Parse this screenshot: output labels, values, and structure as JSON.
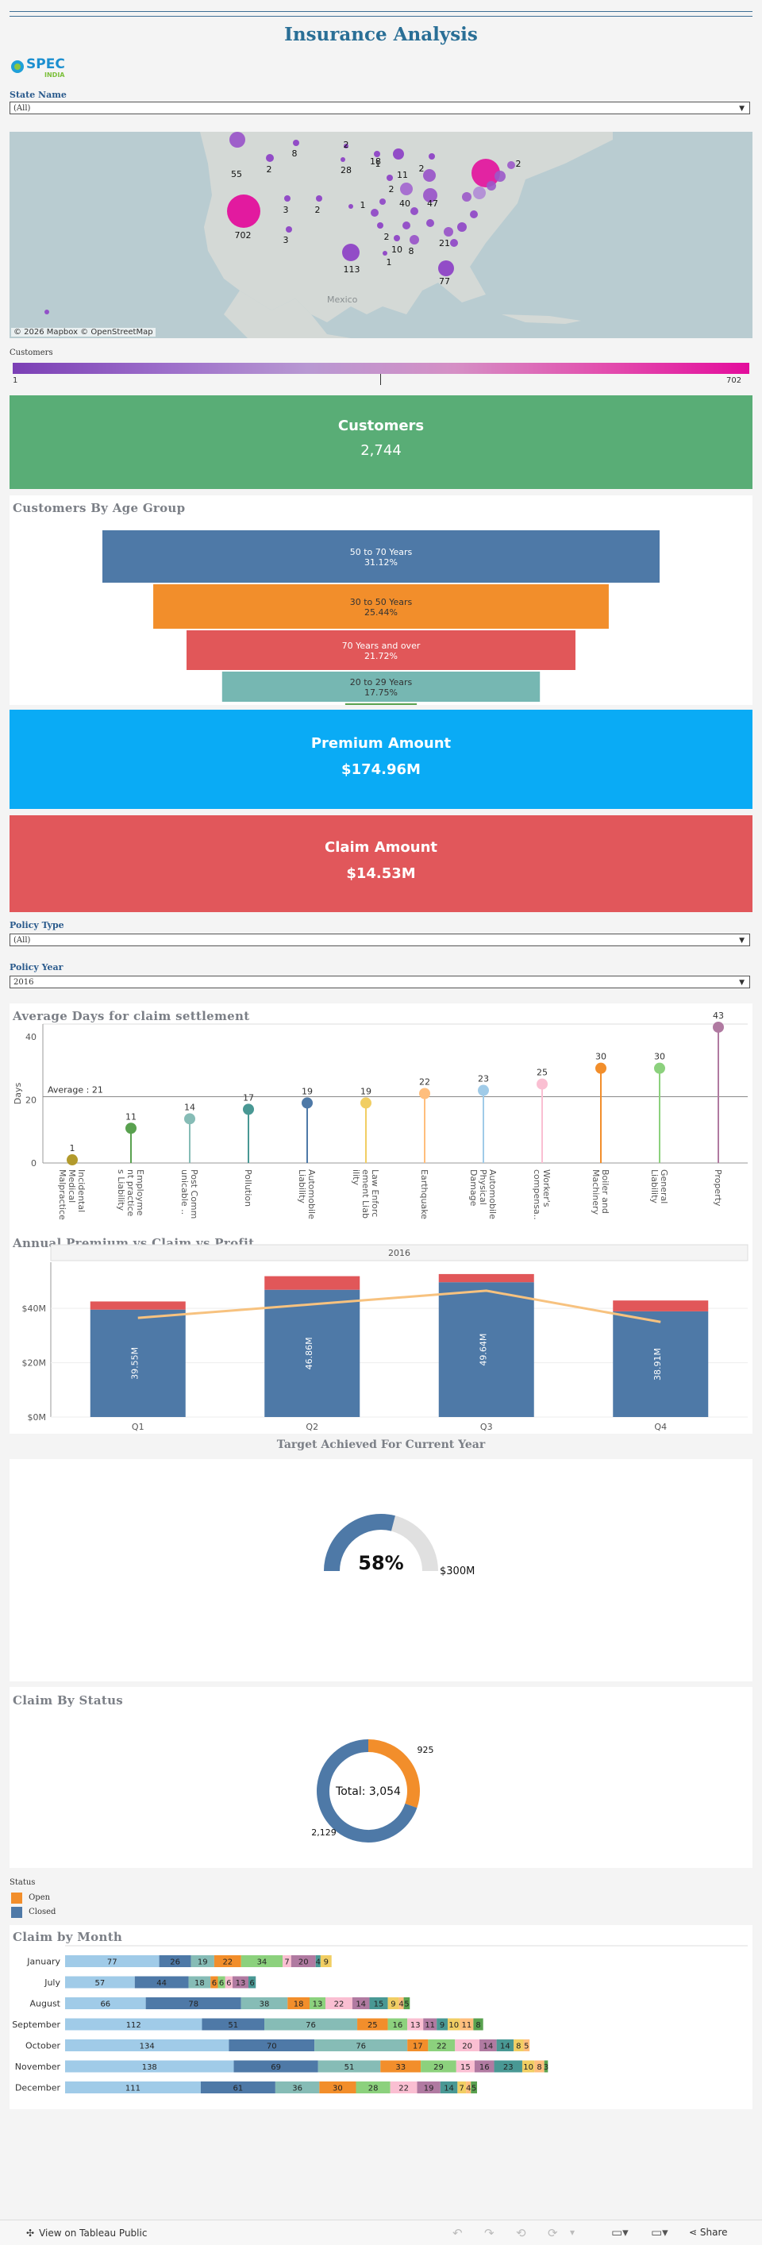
{
  "title": "Insurance Analysis",
  "logo": {
    "text": "SPEC",
    "subtext": "INDIA"
  },
  "filters": {
    "state_label": "State Name",
    "state_value": "(All)",
    "policy_type_label": "Policy Type",
    "policy_type_value": "(All)",
    "policy_year_label": "Policy Year",
    "policy_year_value": "2016"
  },
  "map": {
    "attribution": "© 2026 Mapbox  © OpenStreetMap",
    "country_label": "Mexico",
    "bubble_labels": [
      "55",
      "8",
      "2",
      "1",
      "18",
      "2",
      "2",
      "28",
      "11",
      "2",
      "702",
      "3",
      "2",
      "1",
      "40",
      "47",
      "3",
      "2",
      "10",
      "8",
      "21",
      "113",
      "1",
      "77"
    ],
    "legend_title": "Customers",
    "legend_min": "1",
    "legend_max": "702"
  },
  "kpis": {
    "customers": {
      "label": "Customers",
      "value": "2,744",
      "color": "#59ad76"
    },
    "premium": {
      "label": "Premium Amount",
      "value": "$174.96M",
      "color": "#0aabf5"
    },
    "claim": {
      "label": "Claim Amount",
      "value": "$14.53M",
      "color": "#e1575b"
    }
  },
  "sections": {
    "age_group": "Customers By Age Group",
    "avg_days": "Average Days for claim settlement",
    "annual": "Annual Premium vs Claim vs Profit",
    "target": "Target Achieved For Current Year",
    "status": "Claim By Status",
    "month": "Claim by Month"
  },
  "chart_data": [
    {
      "type": "bar",
      "title": "Customers By Age Group",
      "categories": [
        "50 to 70 Years",
        "30 to 50 Years",
        "70 Years and over",
        "20 to 29 Years",
        ""
      ],
      "values": [
        31.12,
        25.44,
        21.72,
        17.75,
        4.0
      ],
      "labels": [
        "31.12%",
        "25.44%",
        "21.72%",
        "17.75%"
      ],
      "colors": [
        "#4e79a7",
        "#f28e2b",
        "#e15759",
        "#76b7b2",
        "#59a14f"
      ]
    },
    {
      "type": "scatter",
      "title": "Average Days for claim settlement",
      "ylabel": "Days",
      "ylim": [
        0,
        44
      ],
      "yticks": [
        "0",
        "20",
        "40"
      ],
      "average": 21,
      "average_label": "Average : 21",
      "categories": [
        "Incidental Medical Malpractice",
        "Employment practices Liability",
        "Post Communicable ..",
        "Pollution",
        "Automobile Liability",
        "Law Enforcement Liability",
        "Earthquake",
        "Automobile Physical Damage",
        "Worker's compensa..",
        "Boiler and Machinery",
        "General Liability",
        "Property"
      ],
      "tick_labels": [
        "Incidental\nMedical\nMalpractice",
        "Employme\nnt practice\ns Liability",
        "Post Comm\nunicable ..",
        "Pollution",
        "Automobile\nLiability",
        "Law Enforc\nement Liab\nility",
        "Earthquake",
        "Automobile\nPhysical\nDamage",
        "Worker's\ncompensa..",
        "Boiler and\nMachinery",
        "General\nLiability",
        "Property"
      ],
      "values": [
        1,
        11,
        14,
        17,
        19,
        19,
        22,
        23,
        25,
        30,
        30,
        43
      ],
      "colors": [
        "#b29a2c",
        "#59a14f",
        "#86bcb6",
        "#499894",
        "#4e79a7",
        "#f1ce63",
        "#ffbe7d",
        "#a0cbe8",
        "#fabfd2",
        "#f28e2b",
        "#8cd17d",
        "#b07aa1"
      ]
    },
    {
      "type": "bar",
      "title": "Annual Premium vs Claim vs Profit",
      "year_label": "2016",
      "categories": [
        "Q1",
        "Q2",
        "Q3",
        "Q4"
      ],
      "ylim": [
        0,
        57
      ],
      "yticks": [
        "$0M",
        "$20M",
        "$40M"
      ],
      "series": [
        {
          "values": [
            39.55,
            46.86,
            49.64,
            38.91
          ],
          "labels": [
            "39.55M",
            "46.86M",
            "49.64M",
            "38.91M"
          ],
          "color": "#4e79a7"
        },
        {
          "values": [
            3.0,
            5.0,
            3.0,
            4.0
          ],
          "color": "#e15759"
        },
        {
          "values": [
            36.5,
            41.5,
            46.5,
            35.0
          ],
          "color": "#f7c27f",
          "type": "line"
        }
      ]
    },
    {
      "type": "pie",
      "title": "Target Achieved For Current Year",
      "value": 58,
      "center_label": "58%",
      "target_label": "$300M",
      "colors": [
        "#4e79a7",
        "#e0e0e0"
      ]
    },
    {
      "type": "pie",
      "title": "Claim By Status",
      "center_label": "Total: 3,054",
      "categories": [
        "Open",
        "Closed"
      ],
      "values": [
        925,
        2129
      ],
      "value_labels": [
        "925",
        "2,129"
      ],
      "colors": [
        "#f28e2b",
        "#4e79a7"
      ],
      "legend_title": "Status"
    },
    {
      "type": "bar",
      "title": "Claim by Month",
      "stacked": true,
      "orientation": "horizontal",
      "categories": [
        "January",
        "July",
        "August",
        "September",
        "October",
        "November",
        "December"
      ],
      "rows": [
        [
          77,
          26,
          19,
          22,
          34,
          7,
          20,
          4,
          9
        ],
        [
          57,
          44,
          18,
          6,
          6,
          6,
          13,
          6
        ],
        [
          66,
          78,
          38,
          18,
          13,
          22,
          14,
          15,
          9,
          4,
          5
        ],
        [
          112,
          51,
          76,
          25,
          16,
          13,
          11,
          9,
          10,
          11,
          8
        ],
        [
          134,
          70,
          76,
          17,
          22,
          20,
          14,
          14,
          8,
          5
        ],
        [
          138,
          69,
          51,
          33,
          29,
          15,
          16,
          23,
          10,
          8,
          3
        ],
        [
          111,
          61,
          36,
          30,
          28,
          22,
          19,
          14,
          7,
          4,
          5
        ]
      ],
      "colors": [
        "#a0cbe8",
        "#4e79a7",
        "#86bcb6",
        "#f28e2b",
        "#8cd17d",
        "#fabfd2",
        "#b07aa1",
        "#499894",
        "#f1ce63",
        "#ffbe7d",
        "#59a14f"
      ]
    }
  ],
  "footer": {
    "view_label": "View on Tableau Public",
    "share_label": "Share"
  }
}
